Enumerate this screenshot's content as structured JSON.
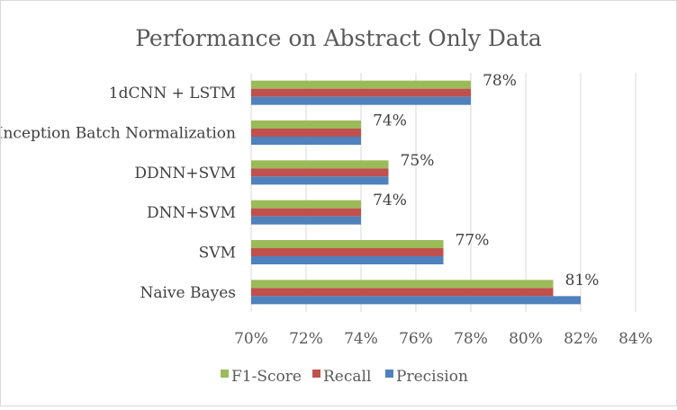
{
  "chart_data": {
    "type": "bar",
    "orientation": "horizontal",
    "title": "Performance on Abstract Only Data",
    "xlabel": "",
    "ylabel": "",
    "categories": [
      "1dCNN + LSTM",
      "Inception Batch Normalization",
      "DDNN+SVM",
      "DNN+SVM",
      "SVM",
      "Naive Bayes"
    ],
    "series": [
      {
        "name": "F1-Score",
        "color": "#9bbb59",
        "values": [
          78,
          74,
          75,
          74,
          77,
          81
        ]
      },
      {
        "name": "Recall",
        "color": "#c0504d",
        "values": [
          78,
          74,
          75,
          74,
          77,
          81
        ]
      },
      {
        "name": "Precision",
        "color": "#4f81bd",
        "values": [
          78,
          74,
          75,
          74,
          77,
          82
        ]
      }
    ],
    "data_labels": [
      "78%",
      "74%",
      "75%",
      "74%",
      "77%",
      "81%"
    ],
    "xlim": [
      70,
      84
    ],
    "xticks": [
      "70%",
      "72%",
      "74%",
      "76%",
      "78%",
      "80%",
      "82%",
      "84%"
    ],
    "grid": true,
    "legend_position": "bottom"
  }
}
